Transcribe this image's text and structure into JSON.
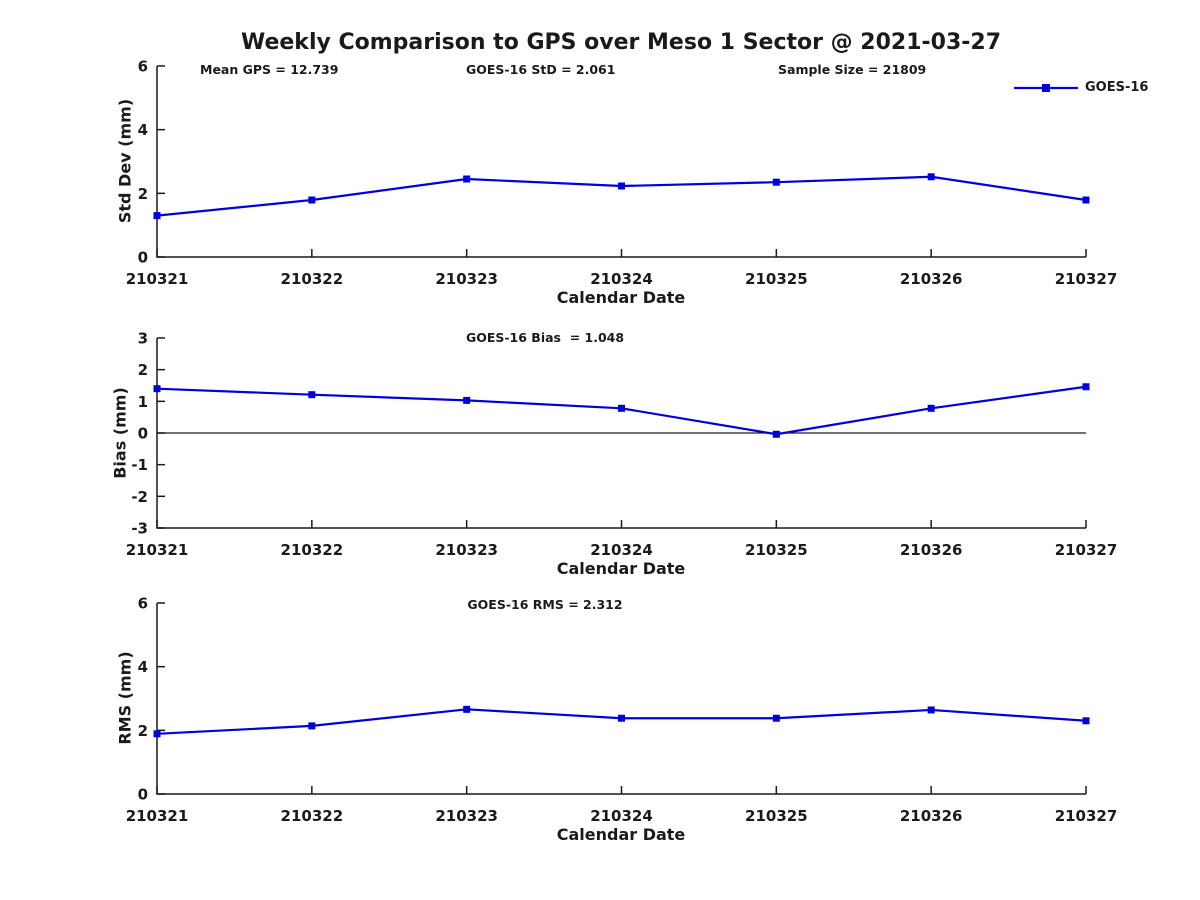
{
  "figure": {
    "title": "Weekly Comparison to GPS over Meso 1 Sector @ 2021-03-27",
    "legend": {
      "label": "GOES-16",
      "location": "upper right",
      "frame": false
    },
    "colors": {
      "line": "#0000dd",
      "marker": "#0000dd",
      "text": "#1a1a1a",
      "axis": "#1a1a1a",
      "background": "#ffffff"
    }
  },
  "chart_data": [
    {
      "id": "std-dev",
      "type": "line",
      "marker": "square",
      "grid": false,
      "annotations": [
        {
          "text": "Mean GPS = 12.739"
        },
        {
          "text": "GOES-16 StD = 2.061"
        },
        {
          "text": "Sample Size = 21809"
        }
      ],
      "categories": [
        "210321",
        "210322",
        "210323",
        "210324",
        "210325",
        "210326",
        "210327"
      ],
      "series": [
        {
          "name": "GOES-16",
          "values": [
            1.3,
            1.79,
            2.45,
            2.23,
            2.35,
            2.52,
            1.79
          ]
        }
      ],
      "xlabel": "Calendar Date",
      "ylabel": "Std Dev (mm)",
      "ylim": [
        0,
        6
      ],
      "yticks": [
        0,
        2,
        4,
        6
      ],
      "zero_line": false
    },
    {
      "id": "bias",
      "type": "line",
      "marker": "square",
      "grid": false,
      "annotations": [
        {
          "text": "GOES-16 Bias  = 1.048"
        }
      ],
      "categories": [
        "210321",
        "210322",
        "210323",
        "210324",
        "210325",
        "210326",
        "210327"
      ],
      "series": [
        {
          "name": "GOES-16",
          "values": [
            1.4,
            1.21,
            1.03,
            0.78,
            -0.04,
            0.78,
            1.46
          ]
        }
      ],
      "xlabel": "Calendar Date",
      "ylabel": "Bias (mm)",
      "ylim": [
        -3,
        3
      ],
      "yticks": [
        -3,
        -2,
        -1,
        0,
        1,
        2,
        3
      ],
      "zero_line": true
    },
    {
      "id": "rms",
      "type": "line",
      "marker": "square",
      "grid": false,
      "annotations": [
        {
          "text": "GOES-16 RMS = 2.312"
        }
      ],
      "categories": [
        "210321",
        "210322",
        "210323",
        "210324",
        "210325",
        "210326",
        "210327"
      ],
      "series": [
        {
          "name": "GOES-16",
          "values": [
            1.89,
            2.14,
            2.66,
            2.38,
            2.38,
            2.64,
            2.3
          ]
        }
      ],
      "xlabel": "Calendar Date",
      "ylabel": "RMS (mm)",
      "ylim": [
        0,
        6
      ],
      "yticks": [
        0,
        2,
        4,
        6
      ],
      "zero_line": false
    }
  ]
}
